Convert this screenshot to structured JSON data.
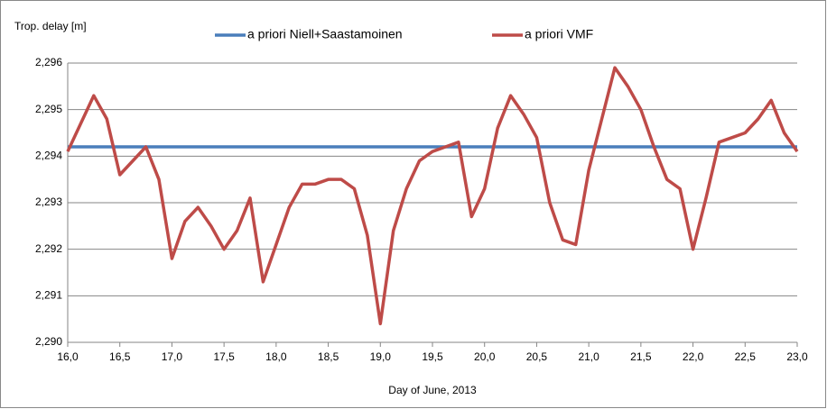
{
  "chart_data": {
    "type": "line",
    "y_label": "Trop. delay [m]",
    "x_label": "Day of June, 2013",
    "legend_position": "top",
    "grid": true,
    "xlim": [
      16,
      23
    ],
    "xticks": [
      {
        "value": 16,
        "label": "16,0"
      },
      {
        "value": 16.5,
        "label": "16,5"
      },
      {
        "value": 17,
        "label": "17,0"
      },
      {
        "value": 17.5,
        "label": "17,5"
      },
      {
        "value": 18,
        "label": "18,0"
      },
      {
        "value": 18.5,
        "label": "18,5"
      },
      {
        "value": 19,
        "label": "19,0"
      },
      {
        "value": 19.5,
        "label": "19,5"
      },
      {
        "value": 20,
        "label": "20,0"
      },
      {
        "value": 20.5,
        "label": "20,5"
      },
      {
        "value": 21,
        "label": "21,0"
      },
      {
        "value": 21.5,
        "label": "21,5"
      },
      {
        "value": 22,
        "label": "22,0"
      },
      {
        "value": 22.5,
        "label": "22,5"
      },
      {
        "value": 23,
        "label": "23,0"
      }
    ],
    "ylim": [
      2.29,
      2.296
    ],
    "yticks": [
      {
        "value": 2.29,
        "label": "2,290"
      },
      {
        "value": 2.291,
        "label": "2,291"
      },
      {
        "value": 2.292,
        "label": "2,292"
      },
      {
        "value": 2.293,
        "label": "2,293"
      },
      {
        "value": 2.294,
        "label": "2,294"
      },
      {
        "value": 2.295,
        "label": "2,295"
      },
      {
        "value": 2.296,
        "label": "2,296"
      }
    ],
    "series": [
      {
        "name": "a priori Niell+Saastamoinen",
        "color": "#4a7ebb",
        "x": [
          16,
          23
        ],
        "values": [
          2.2942,
          2.2942
        ]
      },
      {
        "name": "a priori VMF",
        "color": "#be4b48",
        "x": [
          16,
          16.125,
          16.25,
          16.375,
          16.5,
          16.625,
          16.75,
          16.875,
          17,
          17.125,
          17.25,
          17.375,
          17.5,
          17.625,
          17.75,
          17.875,
          18,
          18.125,
          18.25,
          18.375,
          18.5,
          18.625,
          18.75,
          18.875,
          19,
          19.125,
          19.25,
          19.375,
          19.5,
          19.625,
          19.75,
          19.875,
          20,
          20.125,
          20.25,
          20.375,
          20.5,
          20.625,
          20.75,
          20.875,
          21,
          21.125,
          21.25,
          21.375,
          21.5,
          21.625,
          21.75,
          21.875,
          22,
          22.125,
          22.25,
          22.375,
          22.5,
          22.625,
          22.75,
          22.875,
          23
        ],
        "values": [
          2.2941,
          2.2947,
          2.2953,
          2.2948,
          2.2936,
          2.2939,
          2.2942,
          2.2935,
          2.2918,
          2.2926,
          2.2929,
          2.2925,
          2.292,
          2.2924,
          2.2931,
          2.2913,
          2.2921,
          2.2929,
          2.2934,
          2.2934,
          2.2935,
          2.2935,
          2.2933,
          2.2923,
          2.2904,
          2.2924,
          2.2933,
          2.2939,
          2.2941,
          2.2942,
          2.2943,
          2.2927,
          2.2933,
          2.2946,
          2.2953,
          2.2949,
          2.2944,
          2.293,
          2.2922,
          2.2921,
          2.2937,
          2.2948,
          2.2959,
          2.2955,
          2.295,
          2.2942,
          2.2935,
          2.2933,
          2.292,
          2.2931,
          2.2943,
          2.2944,
          2.2945,
          2.2948,
          2.2952,
          2.2945,
          2.2941
        ]
      }
    ]
  }
}
